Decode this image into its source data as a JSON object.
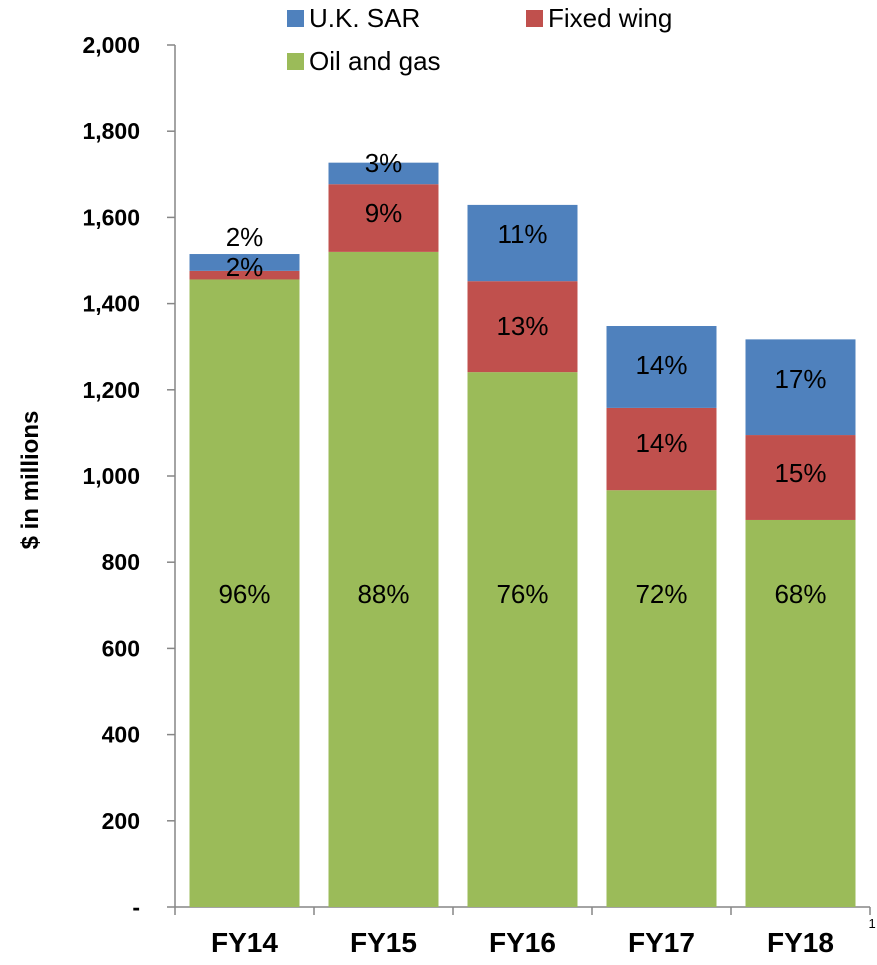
{
  "chart_data": {
    "type": "bar",
    "stacked": true,
    "title": "",
    "xlabel": "",
    "ylabel": "$ in millions",
    "ylim": [
      0,
      2000
    ],
    "yticks": [
      {
        "value": 0,
        "label": "-"
      },
      {
        "value": 200,
        "label": "200"
      },
      {
        "value": 400,
        "label": "400"
      },
      {
        "value": 600,
        "label": "600"
      },
      {
        "value": 800,
        "label": "800"
      },
      {
        "value": 1000,
        "label": "1,000"
      },
      {
        "value": 1200,
        "label": "1,200"
      },
      {
        "value": 1400,
        "label": "1,400"
      },
      {
        "value": 1600,
        "label": "1,600"
      },
      {
        "value": 1800,
        "label": "1,800"
      },
      {
        "value": 2000,
        "label": "2,000"
      }
    ],
    "grid": false,
    "legend": "top",
    "categories": [
      "FY14",
      "FY15",
      "FY16",
      "FY17",
      "FY18"
    ],
    "category_footnote": {
      "category": "FY18",
      "marker": "1"
    },
    "series": [
      {
        "name": "Oil and gas",
        "color": "#9bbb59",
        "values": [
          1456,
          1520,
          1241,
          967,
          898
        ],
        "labels": [
          "96%",
          "88%",
          "76%",
          "72%",
          "68%"
        ]
      },
      {
        "name": "Fixed wing",
        "color": "#c0504d",
        "values": [
          20,
          157,
          211,
          191,
          197
        ],
        "labels": [
          "2%",
          "9%",
          "13%",
          "14%",
          "15%"
        ]
      },
      {
        "name": "U.K. SAR",
        "color": "#4f81bd",
        "values": [
          39,
          50,
          177,
          190,
          222
        ],
        "labels": [
          "2%",
          "3%",
          "11%",
          "14%",
          "17%"
        ]
      }
    ],
    "legend_order": [
      "U.K. SAR",
      "Fixed wing",
      "Oil and gas"
    ]
  }
}
